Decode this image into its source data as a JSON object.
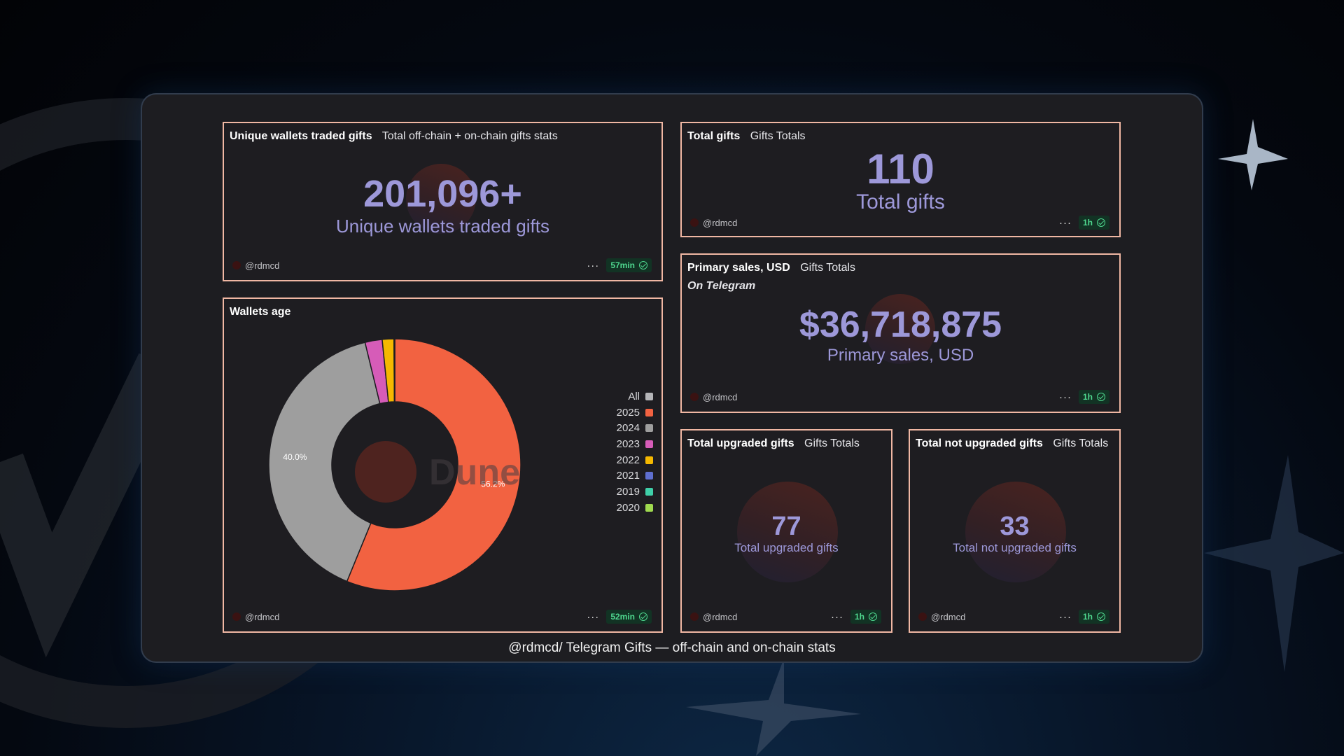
{
  "caption": "@rdmcd/ Telegram Gifts — off-chain and on-chain stats",
  "colors": {
    "accent_value": "#9d98d9",
    "card_border": "#f0b7a3",
    "fresh_badge": "#4fd88f"
  },
  "cards": {
    "unique_wallets": {
      "title": "Unique wallets traded gifts",
      "subtitle": "Total off-chain + on-chain gifts stats",
      "value": "201,096+",
      "label": "Unique wallets traded gifts",
      "author": "@rdmcd",
      "more": "···",
      "freshness": "57min"
    },
    "total_gifts": {
      "title": "Total gifts",
      "subtitle": "Gifts Totals",
      "value": "110",
      "label": "Total gifts",
      "author": "@rdmcd",
      "more": "···",
      "freshness": "1h"
    },
    "primary_sales": {
      "title": "Primary sales, USD",
      "subtitle": "Gifts Totals",
      "note": "On Telegram",
      "value": "$36,718,875",
      "label": "Primary sales, USD",
      "author": "@rdmcd",
      "more": "···",
      "freshness": "1h"
    },
    "wallets_age": {
      "title": "Wallets age",
      "watermark": "Dune",
      "author": "@rdmcd",
      "more": "···",
      "freshness": "52min"
    },
    "upgraded": {
      "title": "Total upgraded gifts",
      "subtitle": "Gifts Totals",
      "value": "77",
      "label": "Total upgraded gifts",
      "author": "@rdmcd",
      "more": "···",
      "freshness": "1h"
    },
    "not_upgraded": {
      "title": "Total not upgraded gifts",
      "subtitle": "Gifts Totals",
      "value": "33",
      "label": "Total not upgraded gifts",
      "author": "@rdmcd",
      "more": "···",
      "freshness": "1h"
    }
  },
  "chart_data": {
    "type": "pie",
    "title": "Wallets age",
    "donut": true,
    "legend_position": "right",
    "legend": [
      {
        "label": "All",
        "color": "#b5b5b8"
      },
      {
        "label": "2025",
        "color": "#f26241"
      },
      {
        "label": "2024",
        "color": "#9e9e9e"
      },
      {
        "label": "2023",
        "color": "#d65cb8"
      },
      {
        "label": "2022",
        "color": "#f5b800"
      },
      {
        "label": "2021",
        "color": "#5f6fcf"
      },
      {
        "label": "2019",
        "color": "#3fcfa8"
      },
      {
        "label": "2020",
        "color": "#9fd94f"
      }
    ],
    "slices": [
      {
        "label": "2025",
        "value": 56.2,
        "color": "#f26241",
        "data_label": "56.2%"
      },
      {
        "label": "2024",
        "value": 40.0,
        "color": "#9e9e9e",
        "data_label": "40.0%"
      },
      {
        "label": "2023",
        "value": 2.2,
        "color": "#d65cb8",
        "data_label": ""
      },
      {
        "label": "2022",
        "value": 1.5,
        "color": "#f5b800",
        "data_label": ""
      },
      {
        "label": "2021",
        "value": 0.1,
        "color": "#5f6fcf",
        "data_label": ""
      }
    ]
  }
}
